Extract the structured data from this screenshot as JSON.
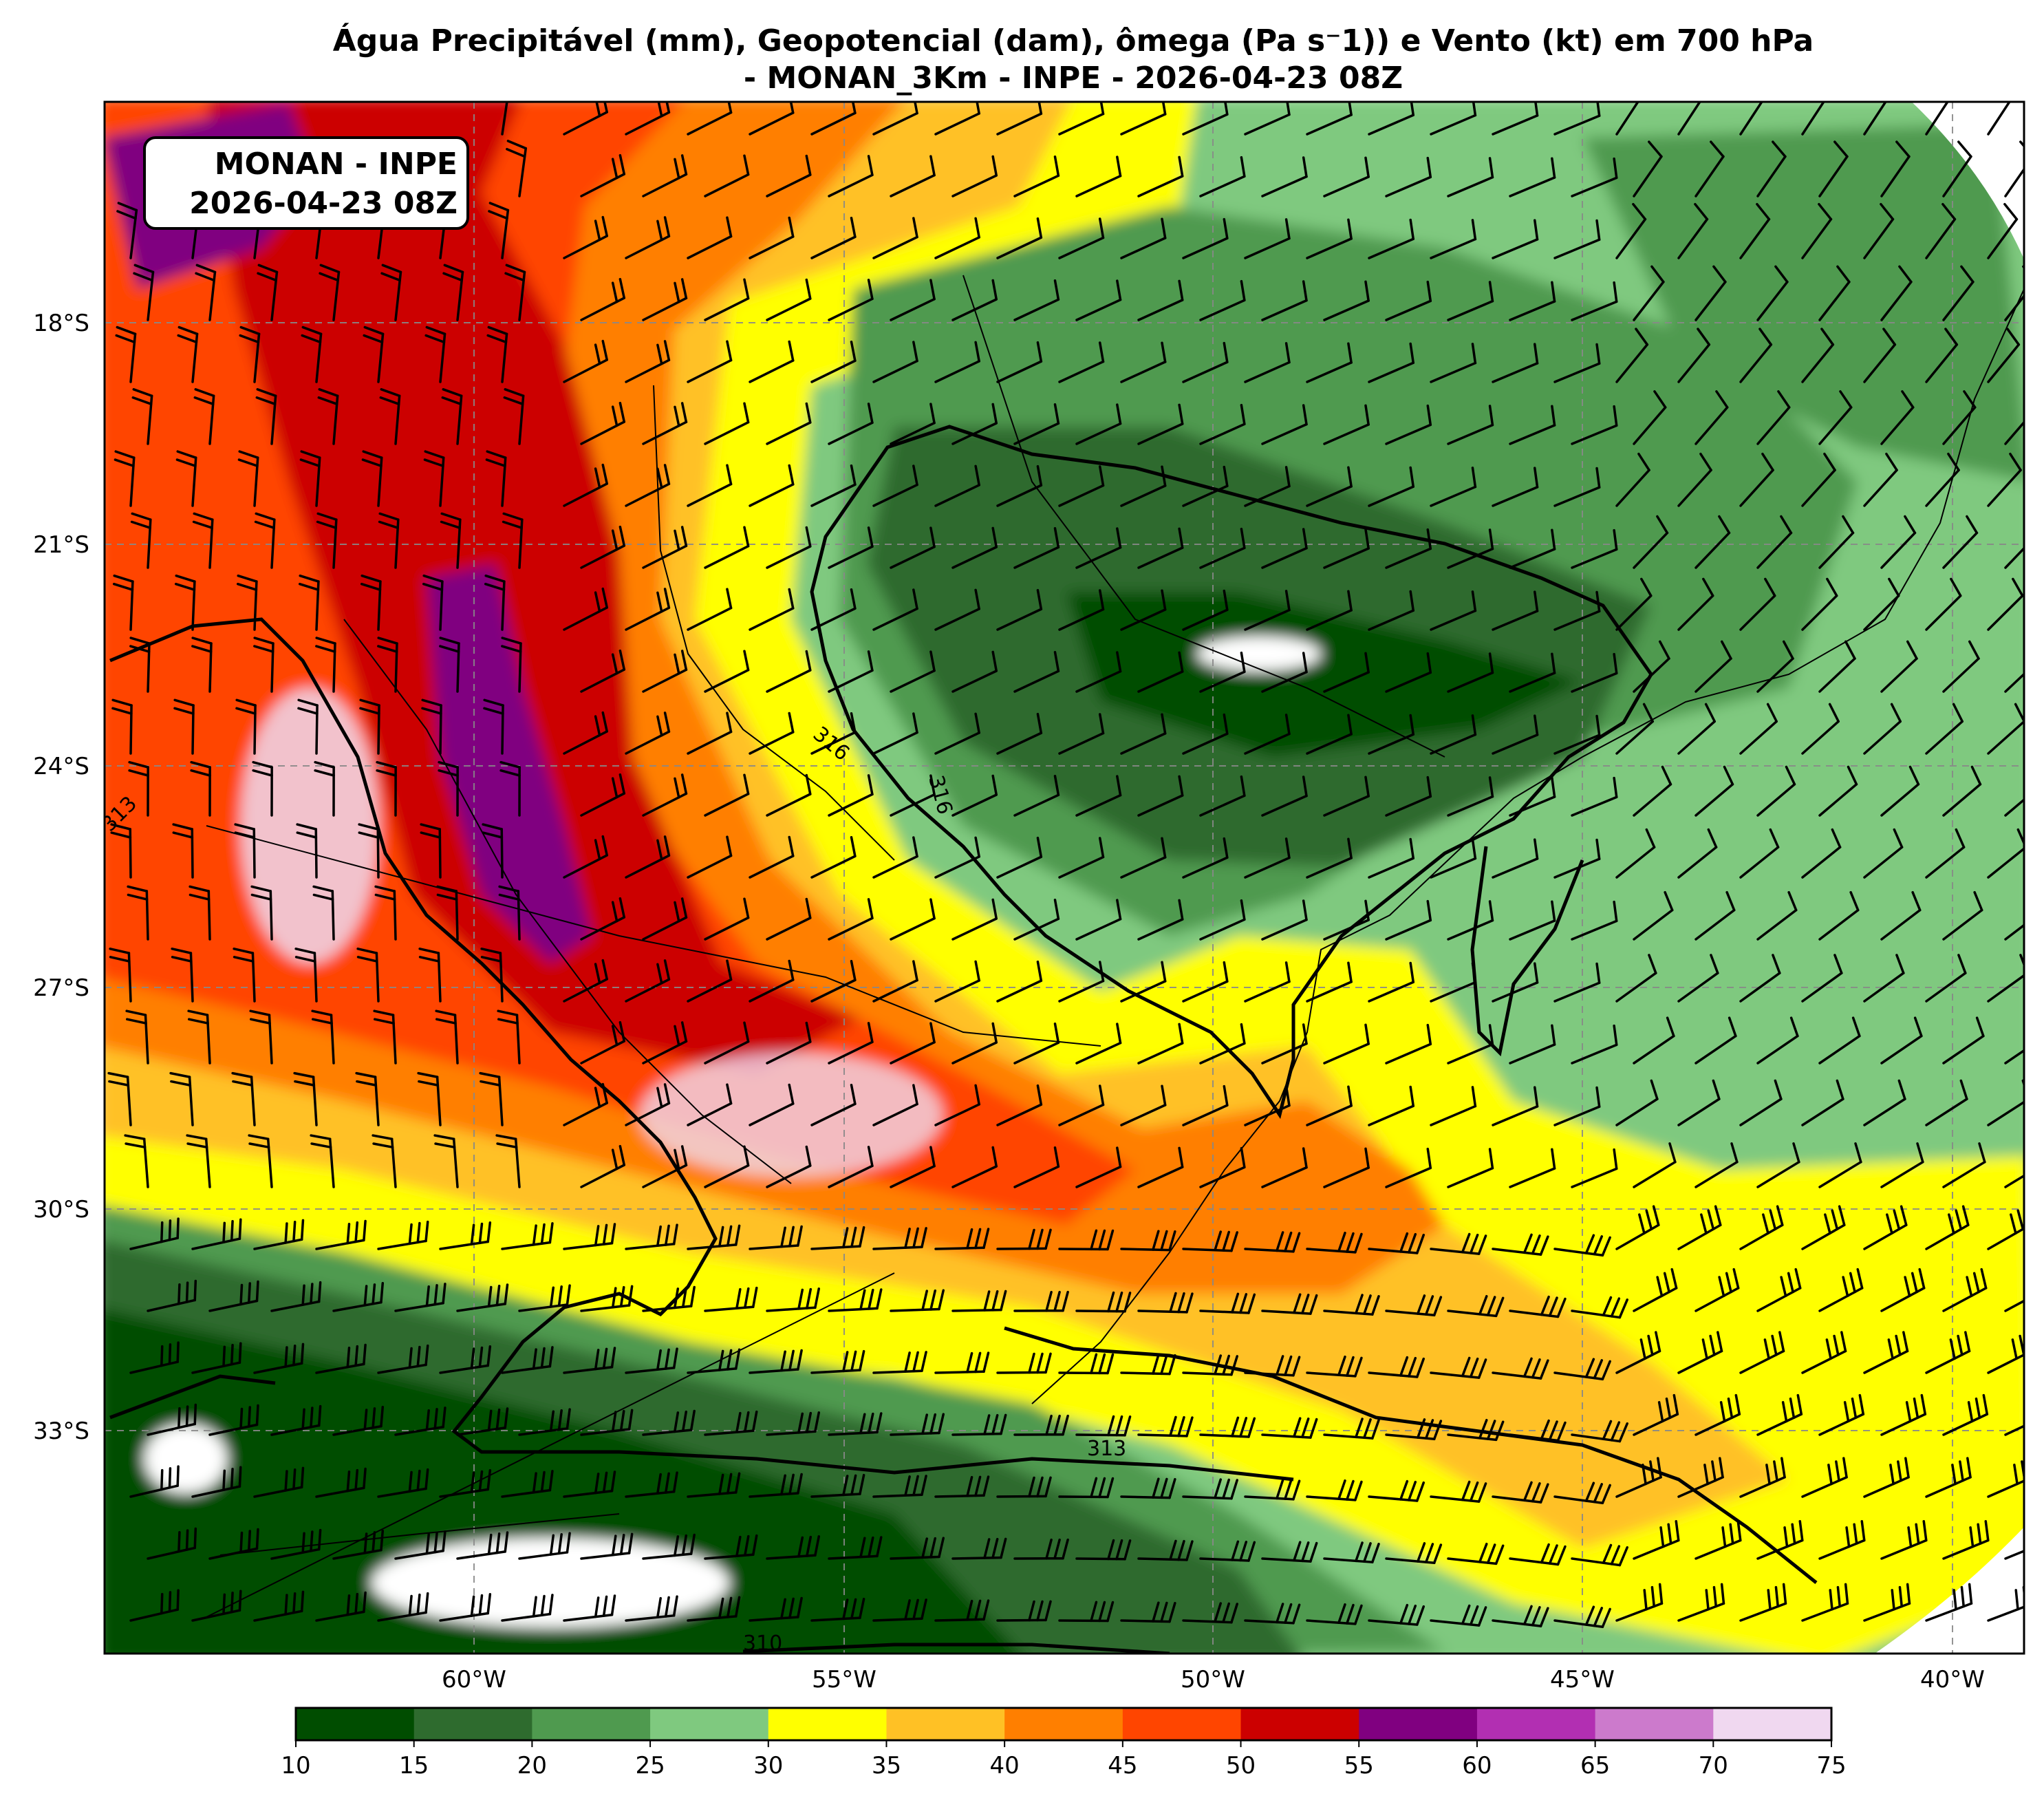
{
  "title": {
    "line1": "Água Precipitável (mm), Geopotencial (dam), ômega (Pa s⁻1)) e Vento (kt) em 700 hPa",
    "line2": "- MONAN_3Km - INPE - 2026-04-23 08Z"
  },
  "info_box": {
    "line1": "MONAN - INPE",
    "line2": "2026-04-23 08Z"
  },
  "lat_labels": [
    "18°S",
    "21°S",
    "24°S",
    "27°S",
    "30°S",
    "33°S"
  ],
  "lon_labels": [
    "60°W",
    "55°W",
    "50°W",
    "45°W",
    "40°W"
  ],
  "contour_labels": [
    "316",
    "316",
    "313",
    "310",
    "313"
  ],
  "colorbar": {
    "ticks": [
      "10",
      "15",
      "20",
      "25",
      "30",
      "35",
      "40",
      "45",
      "50",
      "55",
      "60",
      "65",
      "70",
      "75"
    ],
    "colors": [
      "#004d00",
      "#2e6b2e",
      "#4f9a4f",
      "#7fc97f",
      "#ffff00",
      "#ffc125",
      "#ff7f00",
      "#ff4500",
      "#cc0000",
      "#800080",
      "#b22fb2",
      "#cc7acc",
      "#f0d8f0"
    ]
  },
  "colors": {
    "grid": "#888888",
    "contour": "#000000",
    "barb": "#000000"
  }
}
